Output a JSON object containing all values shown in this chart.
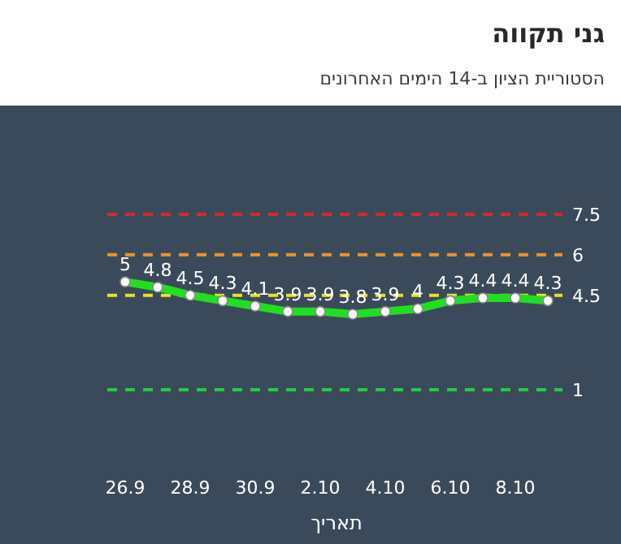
{
  "chart_data": {
    "type": "line",
    "title": "גני תקווה",
    "subtitle": "הסטוריית הציון ב-14 הימים האחרונים",
    "xlabel": "תאריך",
    "categories": [
      "26.9",
      null,
      "28.9",
      null,
      "30.9",
      null,
      "2.10",
      null,
      "4.10",
      null,
      "6.10",
      null,
      "8.10",
      null
    ],
    "series": [
      {
        "color": "#22dd22",
        "values": [
          5,
          4.8,
          4.5,
          4.3,
          4.1,
          3.9,
          3.9,
          3.8,
          3.9,
          4,
          4.3,
          4.4,
          4.4,
          4.3
        ]
      }
    ],
    "tick_labels": "x",
    "data_labels": true,
    "marker": "circle",
    "line_style": "solid",
    "ref_lines": [
      {
        "axis": "y",
        "value": 7.5,
        "label": "7.5",
        "color": "#d42a2a",
        "line_style": "dashed"
      },
      {
        "axis": "y",
        "value": 6,
        "label": "6",
        "color": "#e8962a",
        "line_style": "dashed"
      },
      {
        "axis": "y",
        "value": 4.5,
        "label": "4.5",
        "color": "#e8e02a",
        "line_style": "dashed"
      },
      {
        "axis": "y",
        "value": 1,
        "label": "1",
        "color": "#22cc44",
        "line_style": "dashed"
      }
    ]
  }
}
